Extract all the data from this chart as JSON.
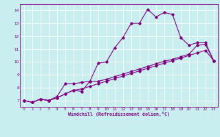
{
  "xlabel": "Windchill (Refroidissement éolien,°C)",
  "bg_color": "#c8eef0",
  "line_color": "#800080",
  "grid_color": "#ffffff",
  "xlim": [
    -0.5,
    23.5
  ],
  "ylim": [
    6.5,
    14.5
  ],
  "yticks": [
    7,
    8,
    9,
    10,
    11,
    12,
    13,
    14
  ],
  "xticks": [
    0,
    1,
    2,
    3,
    4,
    5,
    6,
    7,
    8,
    9,
    10,
    11,
    12,
    13,
    14,
    15,
    16,
    17,
    18,
    19,
    20,
    21,
    22,
    23
  ],
  "line1_x": [
    0,
    1,
    2,
    3,
    4,
    5,
    6,
    7,
    8,
    9,
    10,
    11,
    12,
    13,
    14,
    15,
    16,
    17,
    18,
    19,
    20,
    21,
    22,
    23
  ],
  "line1_y": [
    7.0,
    6.85,
    7.1,
    7.0,
    7.2,
    7.5,
    7.8,
    7.7,
    8.5,
    9.9,
    10.0,
    11.1,
    11.9,
    13.0,
    13.0,
    14.1,
    13.5,
    13.85,
    13.7,
    11.9,
    11.3,
    11.5,
    11.5,
    10.1
  ],
  "line2_x": [
    0,
    1,
    2,
    3,
    4,
    5,
    6,
    7,
    8,
    9,
    10,
    11,
    12,
    13,
    14,
    15,
    16,
    17,
    18,
    19,
    20,
    21,
    22,
    23
  ],
  "line2_y": [
    7.0,
    6.85,
    7.1,
    7.0,
    7.3,
    8.3,
    8.3,
    8.4,
    8.5,
    8.5,
    8.65,
    8.85,
    9.05,
    9.25,
    9.45,
    9.65,
    9.85,
    10.05,
    10.2,
    10.4,
    10.6,
    11.3,
    11.35,
    10.1
  ],
  "line3_x": [
    0,
    1,
    2,
    3,
    4,
    5,
    6,
    7,
    8,
    9,
    10,
    11,
    12,
    13,
    14,
    15,
    16,
    17,
    18,
    19,
    20,
    21,
    22,
    23
  ],
  "line3_y": [
    7.0,
    6.85,
    7.1,
    7.0,
    7.2,
    7.5,
    7.8,
    7.9,
    8.1,
    8.3,
    8.5,
    8.7,
    8.9,
    9.1,
    9.3,
    9.5,
    9.7,
    9.9,
    10.1,
    10.3,
    10.5,
    10.7,
    10.9,
    10.1
  ]
}
